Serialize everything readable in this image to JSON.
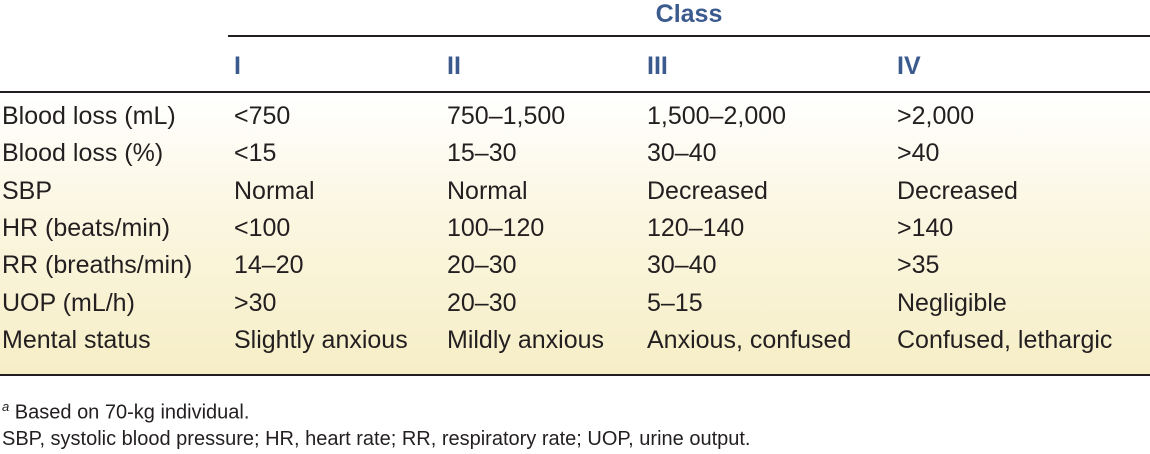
{
  "table": {
    "group_header": "Class",
    "columns": [
      "I",
      "II",
      "III",
      "IV"
    ],
    "rows": [
      [
        "Blood loss (mL)",
        "<750",
        "750–1,500",
        "1,500–2,000",
        ">2,000"
      ],
      [
        "Blood loss (%)",
        "<15",
        "15–30",
        "30–40",
        ">40"
      ],
      [
        "SBP",
        "Normal",
        "Normal",
        "Decreased",
        "Decreased"
      ],
      [
        "HR (beats/min)",
        "<100",
        "100–120",
        "120–140",
        ">140"
      ],
      [
        "RR (breaths/min)",
        "14–20",
        "20–30",
        "30–40",
        ">35"
      ],
      [
        "UOP (mL/h)",
        ">30",
        "20–30",
        "5–15",
        "Negligible"
      ],
      [
        "Mental status",
        "Slightly anxious",
        "Mildly anxious",
        "Anxious, confused",
        "Confused, lethargic"
      ]
    ]
  },
  "footnotes": {
    "marker": "a",
    "note": "Based on 70-kg individual.",
    "abbreviations": "SBP, systolic blood pressure; HR, heart rate; RR, respiratory rate; UOP, urine output."
  }
}
